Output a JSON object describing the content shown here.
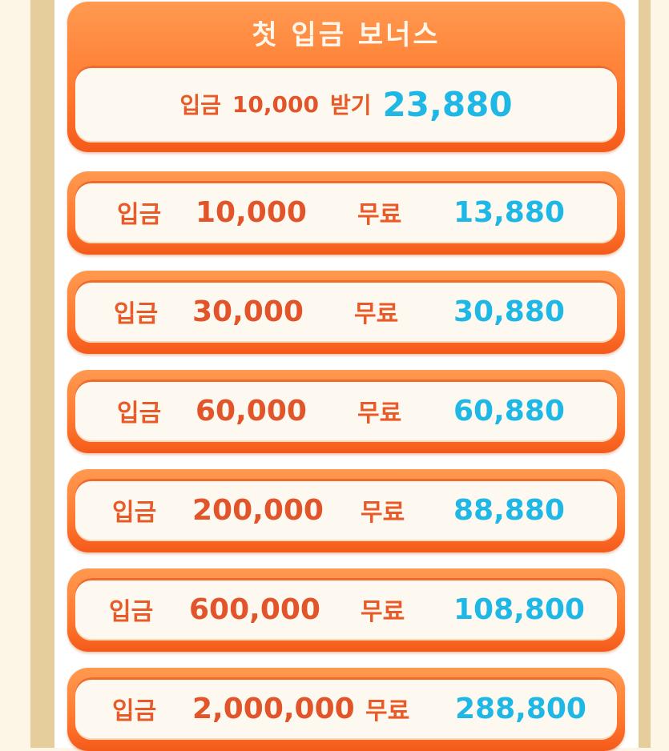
{
  "colors": {
    "accent_orange": "#ff7a30",
    "label_red": "#e2552a",
    "bonus_blue": "#1fb8e6",
    "panel_bg": "#fef9f0",
    "frame": "#e5cd9c"
  },
  "first_bonus": {
    "title": "첫 입금 보너스",
    "deposit_label": "입금",
    "deposit_amount": "10,000",
    "receive_label": "받기",
    "receive_amount": "23,880"
  },
  "rows": [
    {
      "deposit_label": "입금",
      "deposit": "10,000",
      "free_label": "무료",
      "free": "13,880"
    },
    {
      "deposit_label": "입금",
      "deposit": "30,000",
      "free_label": "무료",
      "free": "30,880"
    },
    {
      "deposit_label": "입금",
      "deposit": "60,000",
      "free_label": "무료",
      "free": "60,880"
    },
    {
      "deposit_label": "입금",
      "deposit": "200,000",
      "free_label": "무료",
      "free": "88,880"
    },
    {
      "deposit_label": "입금",
      "deposit": "600,000",
      "free_label": "무료",
      "free": "108,800"
    },
    {
      "deposit_label": "입금",
      "deposit": "2,000,000",
      "free_label": "무료",
      "free": "288,800"
    }
  ]
}
